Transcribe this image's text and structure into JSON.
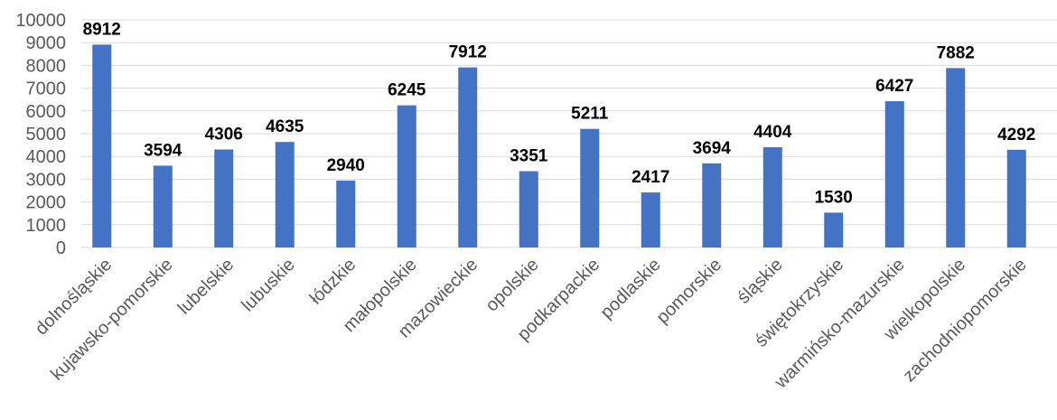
{
  "chart_data": {
    "type": "bar",
    "title": "",
    "xlabel": "",
    "ylabel": "",
    "ylim": [
      0,
      10000
    ],
    "yticks": [
      0,
      1000,
      2000,
      3000,
      4000,
      5000,
      6000,
      7000,
      8000,
      9000,
      10000
    ],
    "grid": "horizontal",
    "legend": "none",
    "bar_color": "#4472c4",
    "categories": [
      "dolnośląskie",
      "kujawsko-pomorskie",
      "lubelskie",
      "lubuskie",
      "łódzkie",
      "małopolskie",
      "mazowieckie",
      "opolskie",
      "podkarpackie",
      "podlaskie",
      "pomorskie",
      "śląskie",
      "świętokrzyskie",
      "warmińsko-mazurskie",
      "wielkopolskie",
      "zachodniopomorskie"
    ],
    "values": [
      8912,
      3594,
      4306,
      4635,
      2940,
      6245,
      7912,
      3351,
      5211,
      2417,
      3694,
      4404,
      1530,
      6427,
      7882,
      4292
    ]
  }
}
